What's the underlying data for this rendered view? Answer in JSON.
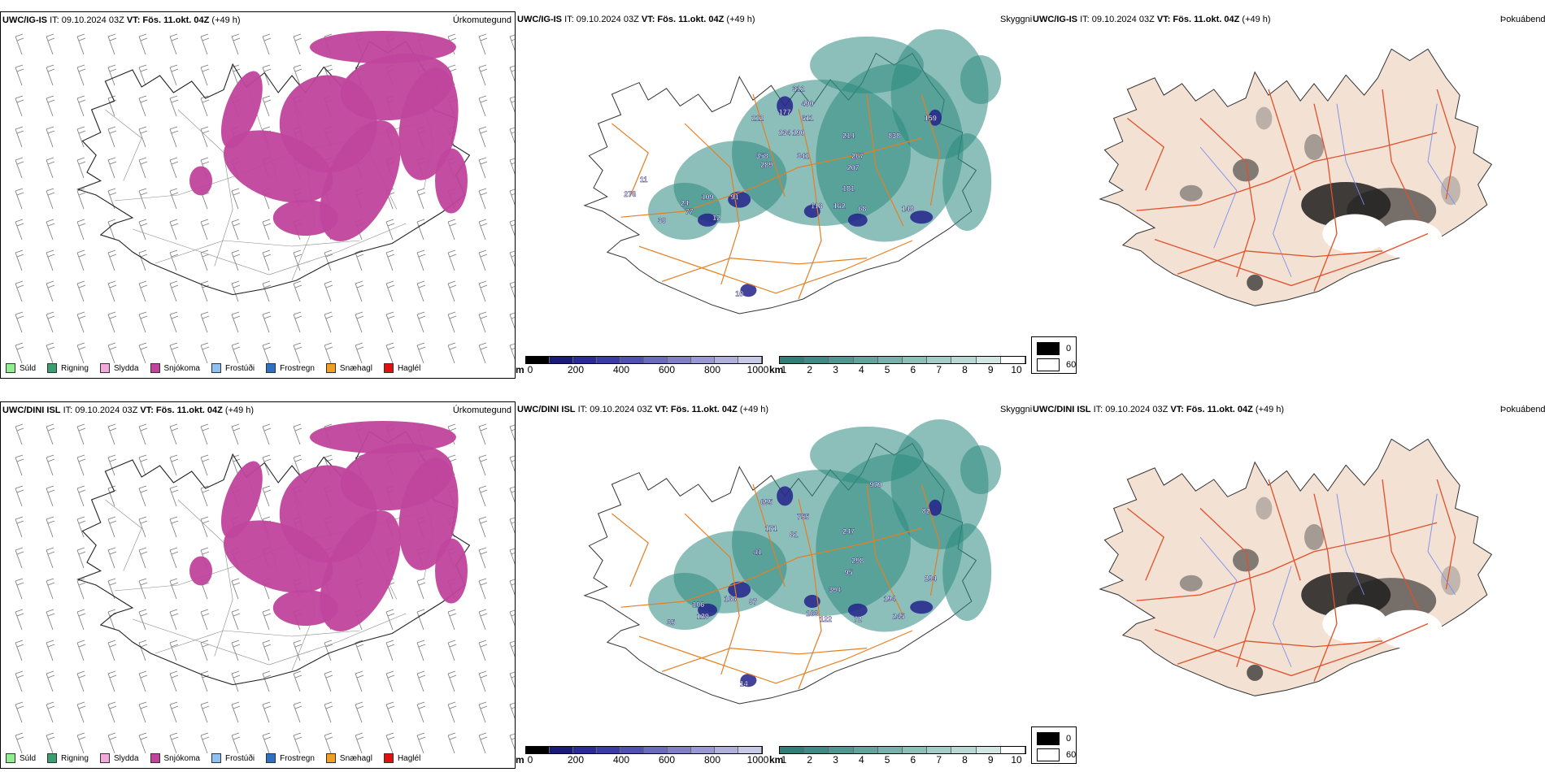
{
  "legend": [
    {
      "label": "Súld",
      "color": "#90ee90"
    },
    {
      "label": "Rigning",
      "color": "#3a9e6e"
    },
    {
      "label": "Slydda",
      "color": "#f2a8d8"
    },
    {
      "label": "Snjókoma",
      "color": "#c0449c"
    },
    {
      "label": "Frostúði",
      "color": "#90c0f0"
    },
    {
      "label": "Frostregn",
      "color": "#3070c0"
    },
    {
      "label": "Snæhagl",
      "color": "#f0a020"
    },
    {
      "label": "Haglél",
      "color": "#e01010"
    }
  ],
  "rows": [
    {
      "model": "UWC/IG-IS",
      "it": "IT: 09.10.2024 03Z",
      "vt_label": "VT: Fös. 11.okt. 04Z",
      "lead": "(+49 h)",
      "labels": [
        "312",
        "490",
        "177",
        "212",
        "611",
        "234",
        "190",
        "214",
        "838",
        "159",
        "358",
        "341",
        "267",
        "289",
        "207",
        "11",
        "181",
        "276",
        "109",
        "91",
        "24",
        "77",
        "12",
        "118",
        "162",
        "68",
        "148",
        "39",
        "10"
      ]
    },
    {
      "model": "UWC/DINI ISL",
      "it": "IT: 09.10.2024 03Z",
      "vt_label": "VT: Fös. 11.okt. 04Z",
      "lead": "(+49 h)",
      "labels": [
        "979",
        "695",
        "755",
        "82",
        "171",
        "81",
        "247",
        "41",
        "298",
        "95",
        "394",
        "106",
        "166",
        "97",
        "194",
        "294",
        "129",
        "163",
        "122",
        "72",
        "245",
        "35",
        "14"
      ]
    }
  ],
  "panel_titles": {
    "precip": "Úrkomutegund",
    "cloud": "Skyggni",
    "fog": "Þokuábendi"
  },
  "cbar_m": {
    "unit": "m",
    "ticks": [
      "0",
      "200",
      "400",
      "600",
      "800",
      "1000"
    ],
    "colors": [
      "#000000",
      "#1a1a7a",
      "#2a2a9a",
      "#3a3aa8",
      "#5050b4",
      "#6a6abe",
      "#8080c8",
      "#9898d2",
      "#b0b0dc",
      "#c8c8e8"
    ]
  },
  "cbar_km": {
    "unit": "km",
    "ticks": [
      "1",
      "2",
      "3",
      "4",
      "5",
      "6",
      "7",
      "8",
      "9",
      "10"
    ],
    "colors": [
      "#2e7f78",
      "#3c8c85",
      "#4d9992",
      "#60a69f",
      "#75b3ac",
      "#8bc0ba",
      "#a2cdc8",
      "#bad9d6",
      "#d2e6e4",
      "#ffffff"
    ]
  },
  "fog_legend": {
    "dark": "0",
    "light": "60"
  },
  "colors": {
    "snow": "#c0449c",
    "cloud": "#2e8a80",
    "base": "#22228a",
    "roads": "#e67e22",
    "fogland": "#f3e1d4",
    "fogroads": "#e0502a",
    "rivers": "#7a8ef0"
  }
}
